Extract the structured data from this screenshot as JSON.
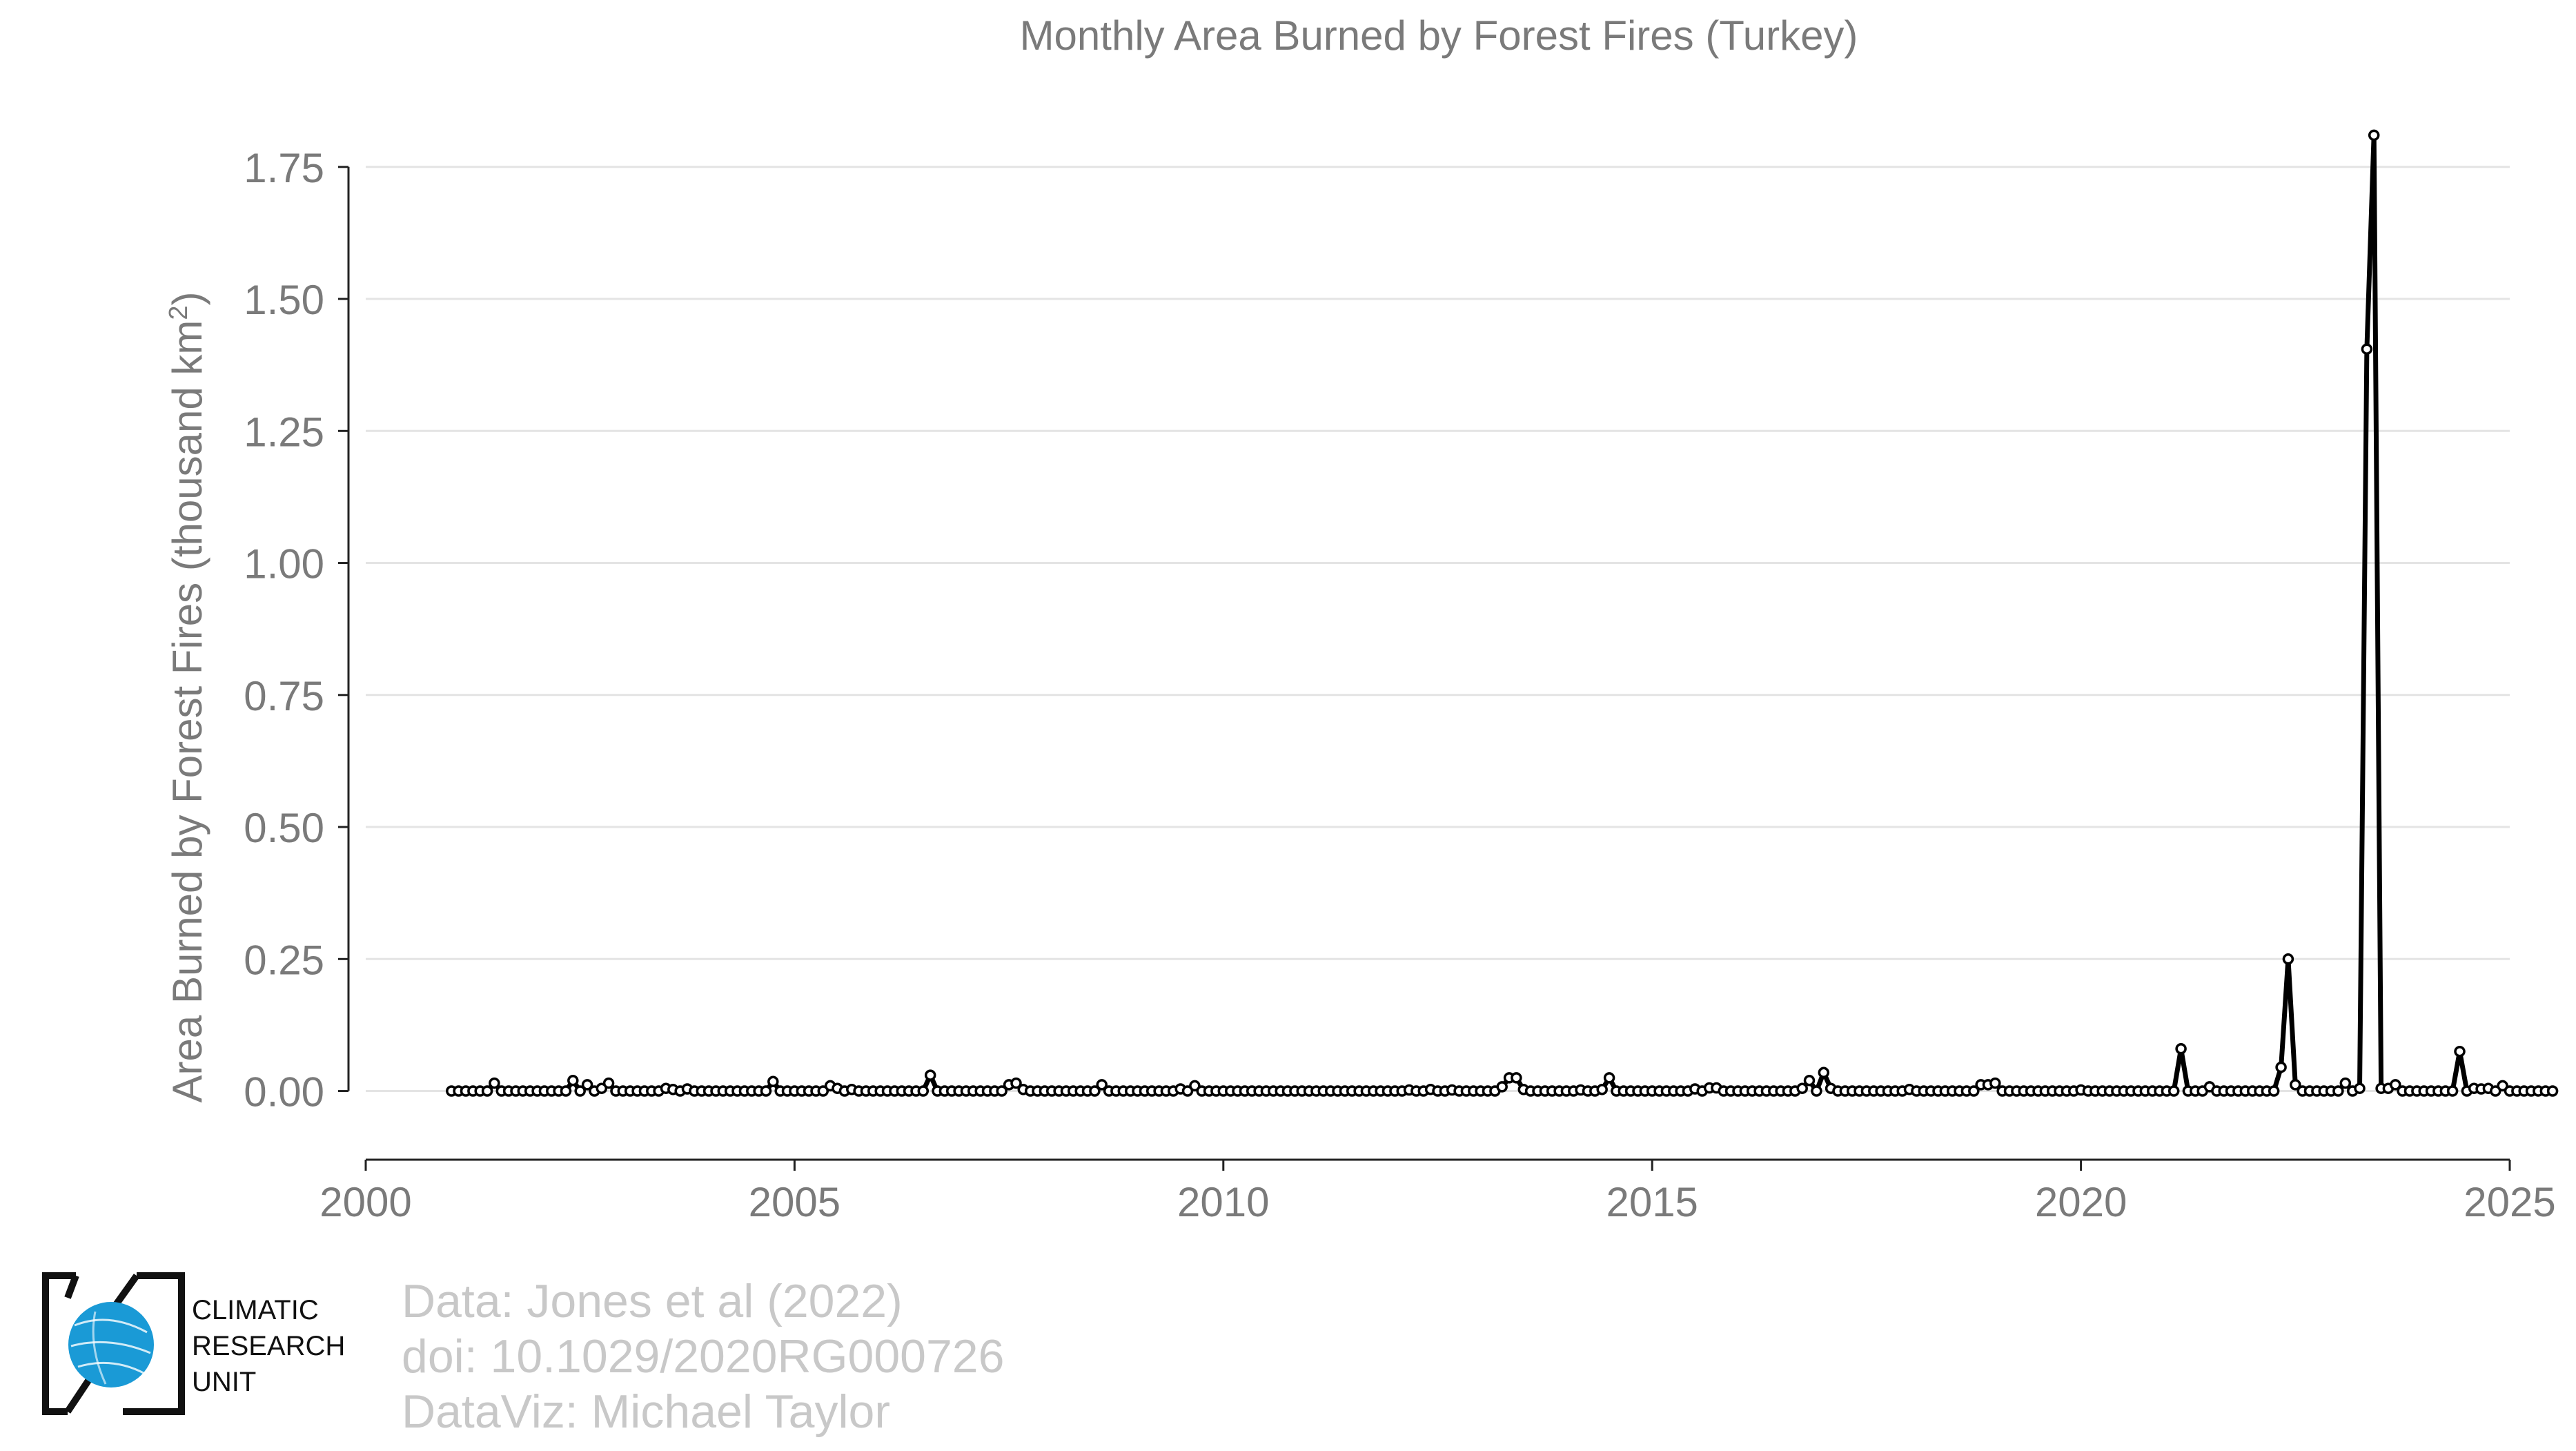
{
  "chart_data": {
    "type": "line",
    "title": "Monthly Area Burned by Forest Fires (Turkey)",
    "ylabel": "Area Burned by Forest Fires (thousand km",
    "ylabel_superscript": "2",
    "ylabel_close": ")",
    "xlim": [
      2000,
      2025
    ],
    "ylim": [
      -0.13,
      1.87
    ],
    "xticks": [
      2000,
      2005,
      2010,
      2015,
      2020,
      2025
    ],
    "yticks": [
      "0.00",
      "0.25",
      "0.50",
      "0.75",
      "1.00",
      "1.25",
      "1.50",
      "1.75"
    ],
    "grid": "horizontal",
    "start_year": 2001,
    "start_month": 1,
    "series": [
      {
        "color": "#000000",
        "values": [
          0,
          0,
          0,
          0,
          0,
          0,
          0.015,
          0,
          0,
          0,
          0,
          0,
          0,
          0,
          0,
          0,
          0,
          0.02,
          0,
          0.012,
          0,
          0.005,
          0.015,
          0,
          0,
          0,
          0,
          0,
          0,
          0,
          0.005,
          0.003,
          0,
          0.004,
          0,
          0,
          0,
          0,
          0,
          0,
          0,
          0,
          0,
          0,
          0,
          0.018,
          0,
          0,
          0,
          0,
          0,
          0,
          0,
          0.01,
          0.005,
          0,
          0.003,
          0,
          0,
          0,
          0,
          0,
          0,
          0,
          0,
          0,
          0,
          0.03,
          0,
          0,
          0,
          0,
          0,
          0,
          0,
          0,
          0,
          0,
          0.012,
          0.015,
          0.003,
          0,
          0,
          0,
          0,
          0,
          0,
          0,
          0,
          0,
          0,
          0.012,
          0,
          0,
          0,
          0,
          0,
          0,
          0,
          0,
          0,
          0,
          0.004,
          0,
          0.01,
          0,
          0,
          0,
          0,
          0,
          0,
          0,
          0,
          0,
          0,
          0,
          0,
          0,
          0,
          0,
          0,
          0,
          0,
          0,
          0,
          0,
          0,
          0,
          0,
          0,
          0,
          0,
          0,
          0,
          0.002,
          0,
          0,
          0.003,
          0,
          0,
          0.002,
          0,
          0,
          0,
          0,
          0,
          0,
          0.008,
          0.025,
          0.025,
          0.003,
          0,
          0,
          0,
          0,
          0,
          0,
          0,
          0.002,
          0,
          0,
          0.003,
          0.025,
          0,
          0,
          0,
          0,
          0,
          0,
          0,
          0,
          0,
          0,
          0,
          0.004,
          0,
          0.006,
          0.006,
          0,
          0,
          0,
          0,
          0,
          0,
          0,
          0,
          0,
          0,
          0,
          0.005,
          0.02,
          0,
          0.035,
          0.005,
          0,
          0,
          0,
          0,
          0,
          0,
          0,
          0,
          0,
          0,
          0.003,
          0,
          0,
          0,
          0,
          0,
          0,
          0,
          0,
          0,
          0.012,
          0.012,
          0.015,
          0,
          0,
          0,
          0,
          0,
          0,
          0,
          0,
          0,
          0,
          0,
          0.002,
          0,
          0,
          0,
          0,
          0,
          0,
          0,
          0,
          0,
          0,
          0,
          0,
          0,
          0.08,
          0,
          0,
          0,
          0.008,
          0,
          0,
          0,
          0,
          0,
          0,
          0,
          0,
          0,
          0.045,
          0.25,
          0.012,
          0,
          0,
          0,
          0,
          0,
          0,
          0.015,
          0,
          0.005,
          1.405,
          1.81,
          0.005,
          0.005,
          0.012,
          0,
          0,
          0,
          0,
          0,
          0,
          0,
          0,
          0.075,
          0,
          0.005,
          0.004,
          0.005,
          0,
          0.01,
          0,
          0,
          0,
          0,
          0,
          0,
          0
        ]
      }
    ]
  },
  "logo": {
    "line1": "CLIMATIC",
    "line2": "RESEARCH",
    "line3": "UNIT",
    "globe_color": "#1a9ad6"
  },
  "credits": {
    "line1": "Data: Jones et al (2022)",
    "line2": "doi: 10.1029/2020RG000726",
    "line3": "DataViz: Michael Taylor"
  }
}
